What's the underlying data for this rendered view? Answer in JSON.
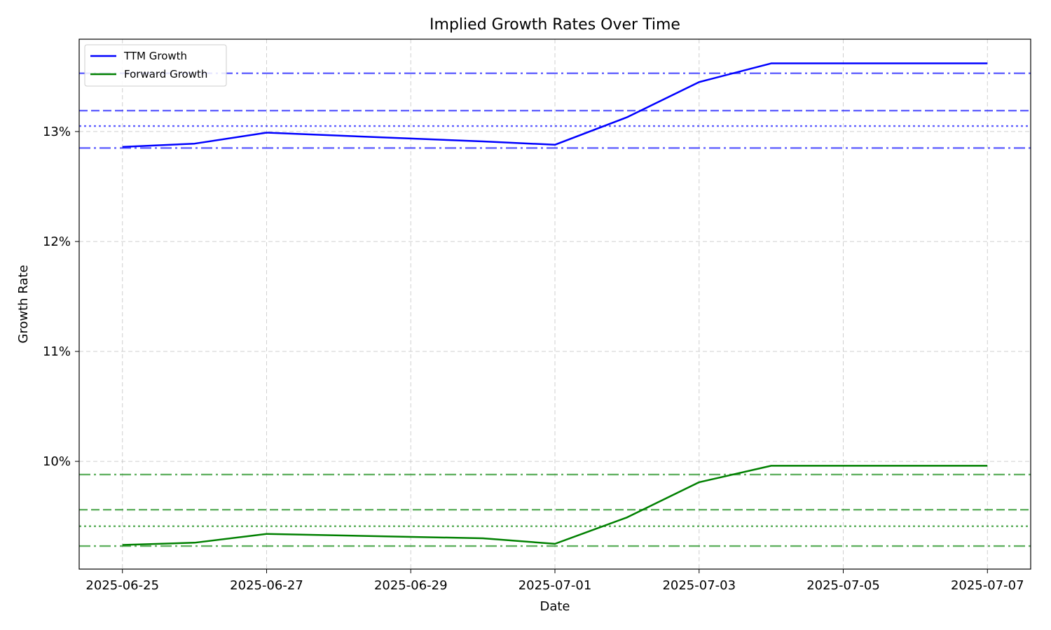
{
  "chart_data": {
    "type": "line",
    "title": "Implied Growth Rates Over Time",
    "xlabel": "Date",
    "ylabel": "Growth Rate",
    "x": [
      "2025-06-25",
      "2025-06-26",
      "2025-06-27",
      "2025-06-28",
      "2025-06-29",
      "2025-06-30",
      "2025-07-01",
      "2025-07-02",
      "2025-07-03",
      "2025-07-04",
      "2025-07-05",
      "2025-07-06",
      "2025-07-07"
    ],
    "x_ticks": [
      "2025-06-25",
      "2025-06-27",
      "2025-06-29",
      "2025-07-01",
      "2025-07-03",
      "2025-07-05",
      "2025-07-07"
    ],
    "xlim": [
      "2025-06-24.4",
      "2025-07-07.6"
    ],
    "ylim": [
      9.02,
      13.84
    ],
    "y_ticks": [
      10,
      11,
      12,
      13
    ],
    "y_tick_format": "{v}%",
    "grid": true,
    "legend_position": "top-left",
    "series": [
      {
        "name": "TTM Growth",
        "color": "#0000ff",
        "values": [
          12.86,
          12.89,
          12.99,
          null,
          null,
          12.91,
          12.88,
          13.13,
          13.45,
          13.62,
          13.62,
          13.62,
          13.62
        ],
        "reference_lines": [
          {
            "value": 13.53,
            "style": "dashdot"
          },
          {
            "value": 13.19,
            "style": "dashed"
          },
          {
            "value": 13.05,
            "style": "dotted"
          },
          {
            "value": 12.85,
            "style": "dashdot"
          }
        ]
      },
      {
        "name": "Forward Growth",
        "color": "#008000",
        "values": [
          9.24,
          9.26,
          9.34,
          null,
          null,
          9.3,
          9.25,
          9.49,
          9.81,
          9.96,
          9.96,
          9.96,
          9.96
        ],
        "reference_lines": [
          {
            "value": 9.88,
            "style": "dashdot"
          },
          {
            "value": 9.56,
            "style": "dashed"
          },
          {
            "value": 9.41,
            "style": "dotted"
          },
          {
            "value": 9.23,
            "style": "dashdot"
          }
        ]
      }
    ]
  }
}
